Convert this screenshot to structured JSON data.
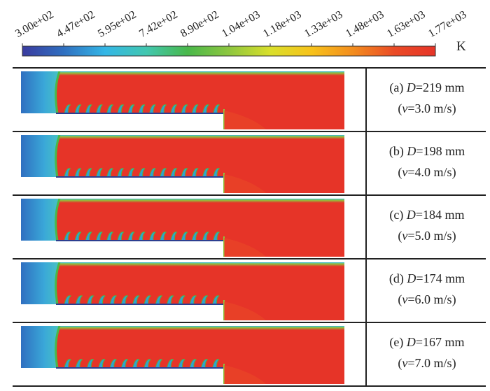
{
  "colorbar": {
    "ticks": [
      "3.00e+02",
      "4.47e+02",
      "5.95e+02",
      "7.42e+02",
      "8.90e+02",
      "1.04e+03",
      "1.18e+03",
      "1.33e+03",
      "1.48e+03",
      "1.63e+03",
      "1.77e+03"
    ],
    "unit": "K",
    "colors": [
      "#3a3b9f",
      "#2f6fc0",
      "#33b6e6",
      "#41c7b0",
      "#49b84a",
      "#8dc63f",
      "#d9df2b",
      "#f7c21a",
      "#f38d1e",
      "#ea4b26",
      "#e63428"
    ]
  },
  "panels": [
    {
      "letter": "(a)",
      "var": "D",
      "value": "=219 mm",
      "vel_var": "v",
      "vel_value": "=3.0 m/s",
      "fingers": 15,
      "ring_width": 0.48
    },
    {
      "letter": "(b)",
      "var": "D",
      "value": "=198 mm",
      "vel_var": "v",
      "vel_value": "=4.0 m/s",
      "fingers": 15,
      "ring_width": 0.48
    },
    {
      "letter": "(c)",
      "var": "D",
      "value": "=184 mm",
      "vel_var": "v",
      "vel_value": "=5.0 m/s",
      "fingers": 15,
      "ring_width": 0.48
    },
    {
      "letter": "(d)",
      "var": "D",
      "value": "=174 mm",
      "vel_var": "v",
      "vel_value": "=6.0 m/s",
      "fingers": 14,
      "ring_width": 0.48
    },
    {
      "letter": "(e)",
      "var": "D",
      "value": "=167 mm",
      "vel_var": "v",
      "vel_value": "=7.0 m/s",
      "fingers": 14,
      "ring_width": 0.48
    }
  ]
}
